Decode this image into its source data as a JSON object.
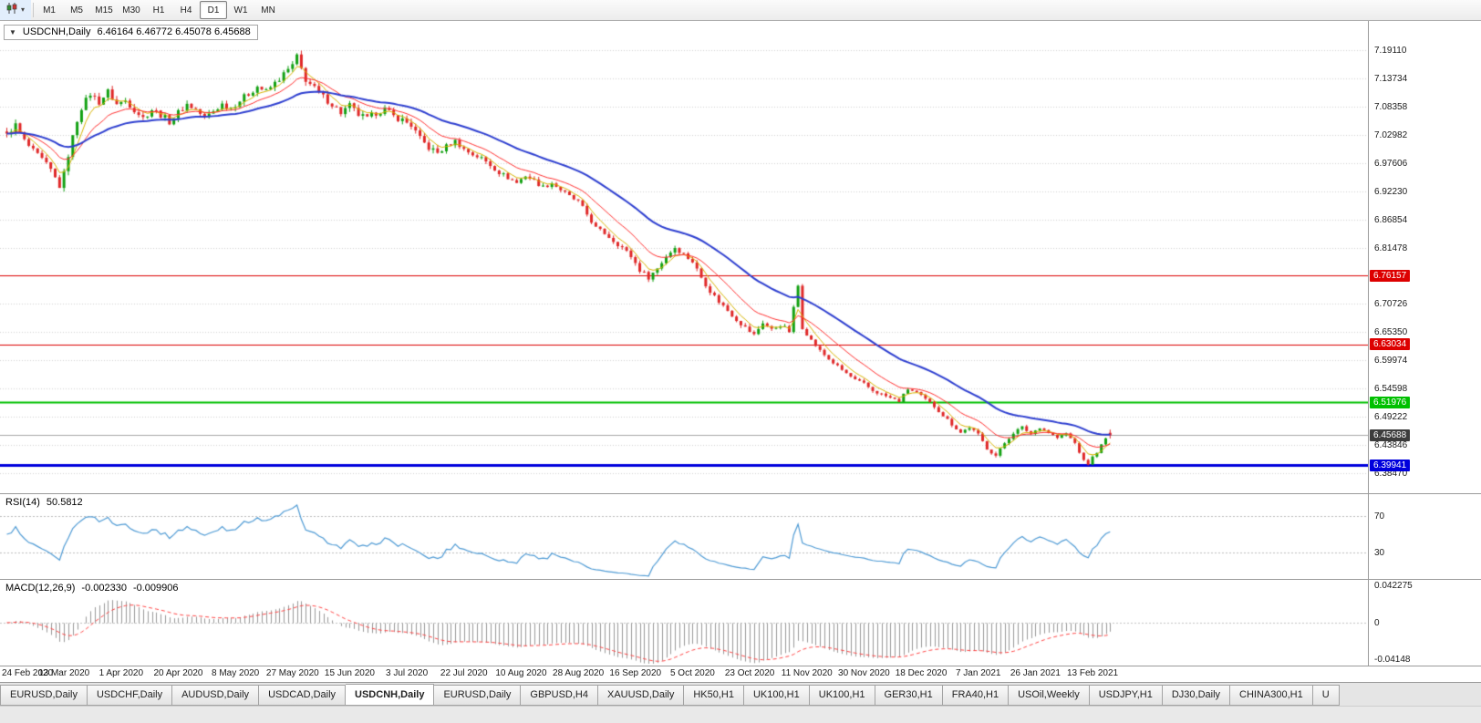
{
  "toolbar": {
    "timeframes": [
      "M1",
      "M5",
      "M15",
      "M30",
      "H1",
      "H4",
      "D1",
      "W1",
      "MN"
    ],
    "active_timeframe": "D1",
    "caret": "▾"
  },
  "chart_header": {
    "collapse_caret": "▼",
    "symbol_period": "USDCNH,Daily",
    "ohlc": "6.46164 6.46772 6.45078 6.45688"
  },
  "main_chart": {
    "axis_labels": [
      "7.19110",
      "7.13734",
      "7.08358",
      "7.02982",
      "6.97606",
      "6.92230",
      "6.86854",
      "6.81478",
      "6.76102",
      "6.70726",
      "6.65350",
      "6.59974",
      "6.54598",
      "6.49222",
      "6.43846",
      "6.38470"
    ],
    "price_top": 7.2467,
    "price_bottom": 6.3464,
    "lines": [
      {
        "price": 6.76157,
        "label": "6.76157",
        "color": "#dd0000",
        "width": 1
      },
      {
        "price": 6.63034,
        "label": "6.63034",
        "color": "#dd0000",
        "width": 1
      },
      {
        "price": 6.51976,
        "label": "6.51976",
        "color": "#00c000",
        "width": 2
      },
      {
        "price": 6.39941,
        "label": "6.39941",
        "color": "#0000dd",
        "width": 3
      }
    ],
    "current_price": {
      "value": 6.45688,
      "label": "6.45688",
      "line_color": "#a8a8a8",
      "badge_color": "#3c3c3c"
    },
    "colors": {
      "up": "#12a112",
      "down": "#e02828",
      "ma_fast": "#d8b400",
      "ma_mid": "#ff3030",
      "ma_slow": "#2e3fd0",
      "grid": "#d4d4d4",
      "background": "#ffffff"
    }
  },
  "rsi": {
    "label": "RSI(14)",
    "value": "50.5812",
    "levels": [
      {
        "value": 70,
        "label": "70"
      },
      {
        "value": 30,
        "label": "30"
      }
    ],
    "line_color": "#4f9bd5"
  },
  "macd": {
    "label": "MACD(12,26,9)",
    "value_main": "-0.002330",
    "value_signal": "-0.009906",
    "axis_labels": [
      {
        "value": 0.042275,
        "label": "0.042275"
      },
      {
        "value": 0,
        "label": "0"
      },
      {
        "value": -0.04148,
        "label": "-0.04148"
      }
    ],
    "hist_color": "#999999",
    "signal_color": "#ff4545"
  },
  "x_axis": {
    "dates": [
      "24 Feb 2020",
      "13 Mar 2020",
      "1 Apr 2020",
      "20 Apr 2020",
      "8 May 2020",
      "27 May 2020",
      "15 Jun 2020",
      "3 Jul 2020",
      "22 Jul 2020",
      "10 Aug 2020",
      "28 Aug 2020",
      "16 Sep 2020",
      "5 Oct 2020",
      "23 Oct 2020",
      "11 Nov 2020",
      "30 Nov 2020",
      "18 Dec 2020",
      "7 Jan 2021",
      "26 Jan 2021",
      "13 Feb 2021"
    ]
  },
  "chart_data": {
    "type": "candlestick",
    "symbol": "USDCNH",
    "timeframe": "Daily",
    "bar_count": 252,
    "bars_per_label": 13,
    "last_bar": {
      "open": 6.46164,
      "high": 6.46772,
      "low": 6.45078,
      "close": 6.45688
    },
    "moving_averages": [
      {
        "period": 5,
        "color_key": "ma_fast",
        "width": 1
      },
      {
        "period": 13,
        "color_key": "ma_mid",
        "width": 1
      },
      {
        "period": 34,
        "color_key": "ma_slow",
        "width": 2
      }
    ],
    "price_path": [
      [
        0,
        7.032
      ],
      [
        2,
        7.048
      ],
      [
        4,
        7.018
      ],
      [
        6,
        6.998
      ],
      [
        8,
        6.982
      ],
      [
        10,
        6.962
      ],
      [
        12,
        6.932
      ],
      [
        13,
        6.955
      ],
      [
        14,
        6.992
      ],
      [
        15,
        7.025
      ],
      [
        16,
        7.058
      ],
      [
        17,
        7.082
      ],
      [
        19,
        7.108
      ],
      [
        21,
        7.092
      ],
      [
        23,
        7.112
      ],
      [
        25,
        7.088
      ],
      [
        27,
        7.095
      ],
      [
        29,
        7.078
      ],
      [
        31,
        7.062
      ],
      [
        33,
        7.078
      ],
      [
        35,
        7.068
      ],
      [
        37,
        7.055
      ],
      [
        39,
        7.072
      ],
      [
        41,
        7.088
      ],
      [
        43,
        7.078
      ],
      [
        45,
        7.062
      ],
      [
        47,
        7.075
      ],
      [
        49,
        7.088
      ],
      [
        51,
        7.082
      ],
      [
        53,
        7.095
      ],
      [
        55,
        7.108
      ],
      [
        57,
        7.122
      ],
      [
        59,
        7.112
      ],
      [
        61,
        7.128
      ],
      [
        63,
        7.145
      ],
      [
        65,
        7.162
      ],
      [
        66,
        7.178
      ],
      [
        67,
        7.155
      ],
      [
        68,
        7.135
      ],
      [
        70,
        7.118
      ],
      [
        72,
        7.102
      ],
      [
        74,
        7.088
      ],
      [
        76,
        7.072
      ],
      [
        78,
        7.085
      ],
      [
        80,
        7.068
      ],
      [
        82,
        7.06
      ],
      [
        84,
        7.072
      ],
      [
        86,
        7.078
      ],
      [
        88,
        7.065
      ],
      [
        90,
        7.058
      ],
      [
        92,
        7.048
      ],
      [
        94,
        7.022
      ],
      [
        96,
        7.005
      ],
      [
        98,
        6.995
      ],
      [
        100,
        7.008
      ],
      [
        102,
        7.018
      ],
      [
        104,
        7.002
      ],
      [
        106,
        6.992
      ],
      [
        108,
        6.985
      ],
      [
        110,
        6.972
      ],
      [
        112,
        6.958
      ],
      [
        114,
        6.948
      ],
      [
        116,
        6.938
      ],
      [
        118,
        6.952
      ],
      [
        120,
        6.942
      ],
      [
        122,
        6.93
      ],
      [
        124,
        6.938
      ],
      [
        126,
        6.925
      ],
      [
        128,
        6.912
      ],
      [
        130,
        6.902
      ],
      [
        132,
        6.878
      ],
      [
        134,
        6.852
      ],
      [
        136,
        6.842
      ],
      [
        138,
        6.828
      ],
      [
        140,
        6.815
      ],
      [
        142,
        6.798
      ],
      [
        144,
        6.772
      ],
      [
        146,
        6.758
      ],
      [
        148,
        6.775
      ],
      [
        150,
        6.798
      ],
      [
        152,
        6.815
      ],
      [
        154,
        6.802
      ],
      [
        156,
        6.788
      ],
      [
        158,
        6.758
      ],
      [
        160,
        6.732
      ],
      [
        162,
        6.712
      ],
      [
        164,
        6.695
      ],
      [
        166,
        6.678
      ],
      [
        168,
        6.662
      ],
      [
        170,
        6.648
      ],
      [
        172,
        6.672
      ],
      [
        174,
        6.658
      ],
      [
        176,
        6.668
      ],
      [
        178,
        6.655
      ],
      [
        180,
        6.742
      ],
      [
        181,
        6.662
      ],
      [
        183,
        6.638
      ],
      [
        185,
        6.618
      ],
      [
        187,
        6.602
      ],
      [
        189,
        6.588
      ],
      [
        191,
        6.575
      ],
      [
        193,
        6.562
      ],
      [
        195,
        6.555
      ],
      [
        197,
        6.542
      ],
      [
        199,
        6.535
      ],
      [
        201,
        6.528
      ],
      [
        203,
        6.522
      ],
      [
        205,
        6.545
      ],
      [
        207,
        6.538
      ],
      [
        209,
        6.525
      ],
      [
        211,
        6.512
      ],
      [
        213,
        6.495
      ],
      [
        215,
        6.478
      ],
      [
        217,
        6.462
      ],
      [
        219,
        6.472
      ],
      [
        221,
        6.458
      ],
      [
        223,
        6.432
      ],
      [
        225,
        6.418
      ],
      [
        227,
        6.442
      ],
      [
        229,
        6.462
      ],
      [
        231,
        6.472
      ],
      [
        233,
        6.46
      ],
      [
        235,
        6.472
      ],
      [
        237,
        6.462
      ],
      [
        239,
        6.452
      ],
      [
        241,
        6.46
      ],
      [
        243,
        6.442
      ],
      [
        244,
        6.425
      ],
      [
        245,
        6.408
      ],
      [
        246,
        6.402
      ],
      [
        247,
        6.415
      ],
      [
        248,
        6.425
      ],
      [
        249,
        6.438
      ],
      [
        250,
        6.45
      ],
      [
        251,
        6.457
      ]
    ]
  },
  "tab_bar": {
    "tabs": [
      {
        "label": "EURUSD,Daily"
      },
      {
        "label": "USDCHF,Daily"
      },
      {
        "label": "AUDUSD,Daily"
      },
      {
        "label": "USDCAD,Daily"
      },
      {
        "label": "USDCNH,Daily",
        "active": true
      },
      {
        "label": "EURUSD,Daily"
      },
      {
        "label": "GBPUSD,H4"
      },
      {
        "label": "XAUUSD,Daily"
      },
      {
        "label": "HK50,H1"
      },
      {
        "label": "UK100,H1"
      },
      {
        "label": "UK100,H1"
      },
      {
        "label": "GER30,H1"
      },
      {
        "label": "FRA40,H1"
      },
      {
        "label": "USOil,Weekly"
      },
      {
        "label": "USDJPY,H1"
      },
      {
        "label": "DJ30,Daily"
      },
      {
        "label": "CHINA300,H1"
      },
      {
        "label": "U"
      }
    ]
  }
}
